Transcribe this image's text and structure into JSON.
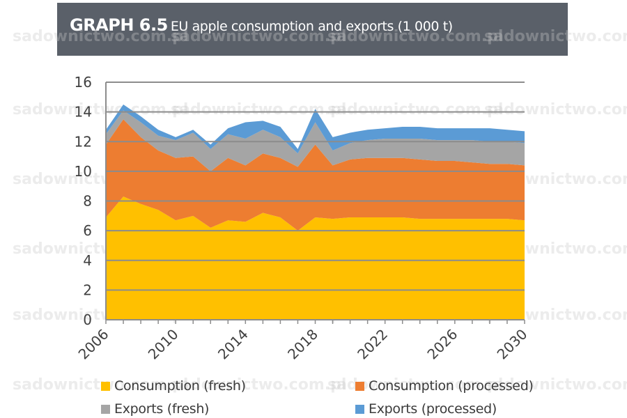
{
  "header": {
    "graph_number": "GRAPH 6.5",
    "title": "EU apple consumption and exports (1 000 t)",
    "background": "#5a6069"
  },
  "watermark": "sadownictwo.com.pl",
  "chart_data": {
    "type": "area",
    "stacked": true,
    "x": [
      2006,
      2007,
      2008,
      2009,
      2010,
      2011,
      2012,
      2013,
      2014,
      2015,
      2016,
      2017,
      2018,
      2019,
      2020,
      2021,
      2022,
      2023,
      2024,
      2025,
      2026,
      2027,
      2028,
      2029,
      2030
    ],
    "xticks": [
      "2006",
      "2010",
      "2014",
      "2018",
      "2022",
      "2026",
      "2030"
    ],
    "ylim": [
      0,
      16
    ],
    "yticks": [
      "0",
      "2",
      "4",
      "6",
      "8",
      "10",
      "12",
      "14",
      "16"
    ],
    "grid": true,
    "series": [
      {
        "name": "Consumption (fresh)",
        "color": "#ffc000",
        "values": [
          6.9,
          8.3,
          7.8,
          7.4,
          6.7,
          7.0,
          6.2,
          6.7,
          6.6,
          7.2,
          6.9,
          6.0,
          6.9,
          6.8,
          6.9,
          6.9,
          6.9,
          6.9,
          6.8,
          6.8,
          6.8,
          6.8,
          6.8,
          6.8,
          6.7
        ]
      },
      {
        "name": "Consumption (processed)",
        "color": "#ed7d31",
        "values": [
          4.9,
          5.2,
          4.5,
          4.0,
          4.2,
          4.0,
          3.8,
          4.2,
          3.8,
          4.0,
          4.0,
          4.3,
          4.9,
          3.6,
          3.9,
          4.0,
          4.0,
          4.0,
          4.0,
          3.9,
          3.9,
          3.8,
          3.7,
          3.7,
          3.7
        ]
      },
      {
        "name": "Exports (fresh)",
        "color": "#a5a5a5",
        "values": [
          0.7,
          0.6,
          1.0,
          1.0,
          1.2,
          1.6,
          1.5,
          1.6,
          1.8,
          1.6,
          1.4,
          0.9,
          1.5,
          1.0,
          1.1,
          1.2,
          1.3,
          1.3,
          1.4,
          1.4,
          1.4,
          1.5,
          1.5,
          1.5,
          1.5
        ]
      },
      {
        "name": "Exports (processed)",
        "color": "#5b9bd5",
        "values": [
          0.3,
          0.4,
          0.4,
          0.4,
          0.2,
          0.2,
          0.3,
          0.4,
          1.1,
          0.6,
          0.7,
          0.3,
          0.9,
          0.9,
          0.7,
          0.7,
          0.7,
          0.8,
          0.8,
          0.8,
          0.8,
          0.8,
          0.9,
          0.8,
          0.8
        ]
      }
    ],
    "legend_position": "bottom"
  }
}
